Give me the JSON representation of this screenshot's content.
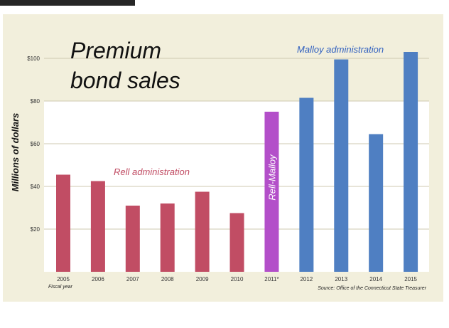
{
  "chart_data": {
    "type": "bar",
    "title_line1": "Premium",
    "title_line2": "bond sales",
    "ylabel": "Millions of dollars",
    "xlabel": "Fiscal year",
    "source": "Source: Office of the Connecticut State Treasurer",
    "ylim": [
      0,
      100
    ],
    "y_ticks": [
      {
        "value": 20,
        "label": "$20"
      },
      {
        "value": 40,
        "label": "$40"
      },
      {
        "value": 60,
        "label": "$60"
      },
      {
        "value": 80,
        "label": "$80"
      },
      {
        "value": 100,
        "label": "$100"
      }
    ],
    "grid": true,
    "categories": [
      "2005",
      "2006",
      "2007",
      "2008",
      "2009",
      "2010",
      "2011*",
      "2012",
      "2013",
      "2014",
      "2015"
    ],
    "values": [
      45.5,
      42.5,
      31,
      32,
      37.5,
      27.5,
      75,
      81.5,
      99.5,
      64.5,
      103
    ],
    "groups": [
      "rell",
      "rell",
      "rell",
      "rell",
      "rell",
      "rell",
      "transition",
      "malloy",
      "malloy",
      "malloy",
      "malloy"
    ],
    "annotations": {
      "rell": "Rell administration",
      "transition": "Rell-Malloy",
      "malloy": "Malloy administration"
    },
    "colors": {
      "rell": "#c14d64",
      "transition": "#b34fc9",
      "malloy": "#4f7fc2",
      "background": "#f2efdc",
      "plot_upper": "#f2efdc",
      "plot_lower": "#ffffff"
    }
  }
}
